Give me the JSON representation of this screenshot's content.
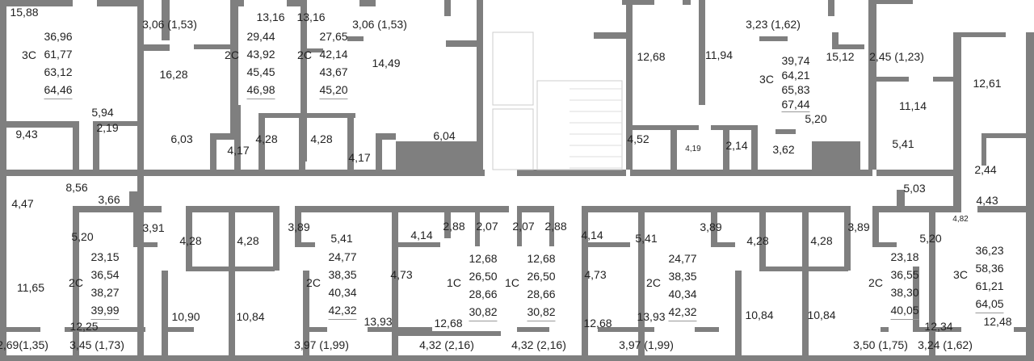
{
  "wall_color": "#7f7f7f",
  "rooms": [
    "15,88",
    "5,94",
    "9,43",
    "2,19",
    "3,06 (1,53)",
    "16,28",
    "6,03",
    "4,17",
    "13,16",
    "4,28",
    "13,16",
    "4,28",
    "3,06 (1,53)",
    "14,49",
    "4,17",
    "6,04",
    "12,68",
    "11,94",
    "3,23 (1,62)",
    "15,12",
    "5,20",
    "4,52",
    "4,19",
    "2,14",
    "3,62",
    "5,41",
    "2,45 (1,23)",
    "11,14",
    "12,61",
    "2,44",
    "8,56",
    "3,66",
    "4,47",
    "5,03",
    "4,43",
    "4,82",
    "3,91",
    "5,20",
    "11,65",
    "12,25",
    "2,69(1,35)",
    "3,45 (1,73)",
    "4,28",
    "4,28",
    "10,90",
    "10,84",
    "3,89",
    "5,41",
    "13,93",
    "3,97 (1,99)",
    "4,14",
    "4,73",
    "2,88",
    "2,07",
    "12,68",
    "4,32 (2,16)",
    "2,07",
    "2,88",
    "4,14",
    "4,73",
    "12,68",
    "4,32 (2,16)",
    "5,41",
    "3,89",
    "13,93",
    "3,97 (1,99)",
    "4,28",
    "4,28",
    "10,84",
    "10,84",
    "3,89",
    "5,20",
    "12,34",
    "3,50 (1,75)",
    "12,48",
    "3,24 (1,62)"
  ],
  "apartments": [
    {
      "type": "3С",
      "areas": [
        "36,96",
        "61,77",
        "63,12",
        "64,46"
      ]
    },
    {
      "type": "2С",
      "areas": [
        "29,44",
        "43,92",
        "45,45",
        "46,98"
      ]
    },
    {
      "type": "2С",
      "areas": [
        "27,65",
        "42,14",
        "43,67",
        "45,20"
      ]
    },
    {
      "type": "3С",
      "areas": [
        "39,74",
        "64,21",
        "65,83",
        "67,44"
      ]
    },
    {
      "type": "2С",
      "areas": [
        "23,15",
        "36,54",
        "38,27",
        "39,99"
      ]
    },
    {
      "type": "2С",
      "areas": [
        "24,77",
        "38,35",
        "40,34",
        "42,32"
      ]
    },
    {
      "type": "1С",
      "areas": [
        "12,68",
        "26,50",
        "28,66",
        "30,82"
      ]
    },
    {
      "type": "1С",
      "areas": [
        "12,68",
        "26,50",
        "28,66",
        "30,82"
      ]
    },
    {
      "type": "2С",
      "areas": [
        "24,77",
        "38,35",
        "40,34",
        "42,32"
      ]
    },
    {
      "type": "2С",
      "areas": [
        "23,18",
        "36,55",
        "38,30",
        "40,05"
      ]
    },
    {
      "type": "3С",
      "areas": [
        "36,23",
        "58,36",
        "61,21",
        "64,05"
      ]
    }
  ]
}
